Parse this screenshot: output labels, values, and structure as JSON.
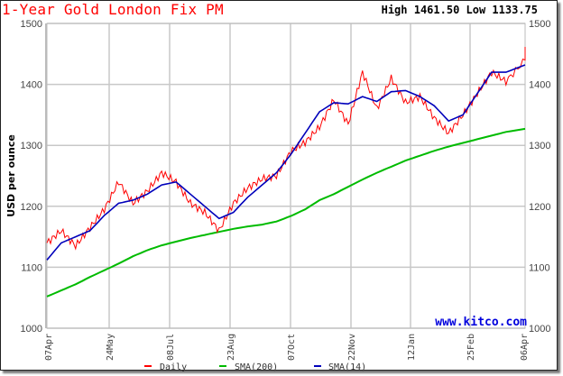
{
  "header": {
    "title": "1-Year Gold London Fix PM",
    "high_low": "High 1461.50 Low 1133.75"
  },
  "watermark": "www.kitco.com",
  "colors": {
    "daily": "#ff0000",
    "sma200": "#00bb00",
    "sma14": "#0000bb",
    "grid": "#c8c8c8",
    "title": "#ff0000"
  },
  "chart_data": {
    "type": "line",
    "title": "1-Year Gold London Fix PM",
    "subtitle": "High 1461.50 Low 1133.75",
    "xlabel": "",
    "ylabel": "USD per ounce",
    "ylim": [
      1000,
      1500
    ],
    "yticks": [
      1000,
      1100,
      1200,
      1300,
      1400,
      1500
    ],
    "xtick_labels": [
      "07Apr",
      "24May",
      "08Jul",
      "23Aug",
      "07Oct",
      "22Nov",
      "12Jan",
      "25Feb",
      "06Apr"
    ],
    "grid": true,
    "legend_position": "bottom",
    "legend": [
      "Daily",
      "SMA(200)",
      "SMA(14)"
    ],
    "x": [
      0,
      0.03,
      0.06,
      0.09,
      0.12,
      0.15,
      0.18,
      0.21,
      0.24,
      0.27,
      0.3,
      0.33,
      0.36,
      0.39,
      0.42,
      0.45,
      0.48,
      0.51,
      0.54,
      0.57,
      0.6,
      0.63,
      0.66,
      0.69,
      0.72,
      0.75,
      0.78,
      0.81,
      0.84,
      0.87,
      0.9,
      0.93,
      0.96,
      1.0
    ],
    "series": [
      {
        "name": "Daily",
        "values": [
          1140,
          1160,
          1135,
          1165,
          1195,
          1240,
          1205,
          1225,
          1255,
          1240,
          1205,
          1190,
          1160,
          1205,
          1230,
          1245,
          1250,
          1290,
          1305,
          1330,
          1375,
          1335,
          1420,
          1360,
          1410,
          1370,
          1380,
          1345,
          1320,
          1350,
          1385,
          1420,
          1405,
          1440
        ]
      },
      {
        "name": "SMA(200)",
        "values": [
          1052,
          1062,
          1072,
          1084,
          1095,
          1106,
          1118,
          1128,
          1136,
          1142,
          1148,
          1153,
          1158,
          1163,
          1167,
          1170,
          1175,
          1184,
          1195,
          1210,
          1220,
          1232,
          1244,
          1255,
          1265,
          1275,
          1283,
          1291,
          1298,
          1304,
          1310,
          1316,
          1322,
          1327
        ]
      },
      {
        "name": "SMA(14)",
        "values": [
          1112,
          1140,
          1150,
          1160,
          1185,
          1205,
          1210,
          1220,
          1235,
          1240,
          1220,
          1200,
          1180,
          1190,
          1215,
          1235,
          1255,
          1285,
          1320,
          1355,
          1370,
          1368,
          1380,
          1372,
          1388,
          1390,
          1380,
          1365,
          1340,
          1350,
          1385,
          1420,
          1420,
          1432
        ]
      }
    ]
  }
}
